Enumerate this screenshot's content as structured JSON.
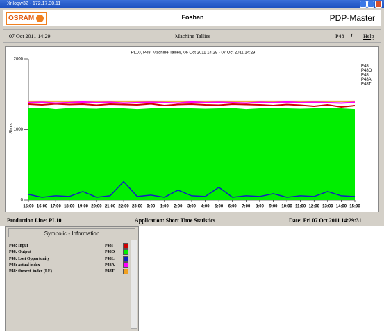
{
  "window": {
    "title": "Xnlogw32 - 172.17.30.11"
  },
  "header": {
    "logo": "OSRAM",
    "site": "Foshan",
    "app": "PDP-Master"
  },
  "toolbar": {
    "datetime": "07 Oct 2011 14:29",
    "view": "Machine Tallies",
    "machine": "P48",
    "info": "i",
    "help": "Help"
  },
  "chart_data": {
    "type": "line",
    "title": "PL10, P48, Machine Tallies, 06 Oct 2011 14:29 - 07 Oct 2011 14:29",
    "y_label": "Shots",
    "categories": [
      "15:00",
      "16:00",
      "17:00",
      "18:00",
      "19:00",
      "20:00",
      "21:00",
      "22:00",
      "23:00",
      "0:00",
      "1:00",
      "2:00",
      "3:00",
      "4:00",
      "5:00",
      "6:00",
      "7:00",
      "8:00",
      "9:00",
      "10:00",
      "11:00",
      "12:00",
      "13:00",
      "14:00",
      "15:00"
    ],
    "ylim": [
      0,
      2000
    ],
    "yticks": [
      0,
      1000,
      2000
    ],
    "series": [
      {
        "name": "P48I",
        "color": "#d00000",
        "values": [
          1360,
          1350,
          1365,
          1355,
          1360,
          1345,
          1360,
          1355,
          1350,
          1365,
          1340,
          1355,
          1360,
          1350,
          1345,
          1360,
          1355,
          1350,
          1340,
          1355,
          1345,
          1330,
          1350,
          1320,
          1340
        ]
      },
      {
        "name": "P48O",
        "color": "#00ee00",
        "values": [
          1300,
          1310,
          1290,
          1305,
          1300,
          1295,
          1310,
          1300,
          1290,
          1300,
          1305,
          1310,
          1300,
          1295,
          1300,
          1305,
          1290,
          1300,
          1310,
          1300,
          1295,
          1300,
          1305,
          1300,
          1290
        ]
      },
      {
        "name": "P48L",
        "color": "#1020c0",
        "values": [
          80,
          40,
          60,
          50,
          120,
          40,
          60,
          260,
          50,
          70,
          40,
          140,
          60,
          50,
          180,
          40,
          60,
          50,
          90,
          40,
          60,
          50,
          120,
          60,
          50
        ]
      },
      {
        "name": "P48A",
        "color": "#ff00ff",
        "values": [
          1380,
          1385,
          1375,
          1380,
          1390,
          1380,
          1385,
          1375,
          1380,
          1385,
          1380,
          1375,
          1390,
          1380,
          1385,
          1380,
          1375,
          1385,
          1380,
          1390,
          1380,
          1385,
          1380,
          1375,
          1385
        ]
      },
      {
        "name": "P48T",
        "color": "#f0a020",
        "values": [
          1400,
          1400,
          1400,
          1400,
          1400,
          1400,
          1400,
          1400,
          1400,
          1400,
          1400,
          1400,
          1400,
          1400,
          1400,
          1400,
          1400,
          1400,
          1400,
          1400,
          1400,
          1400,
          1400,
          1400,
          1400
        ]
      }
    ]
  },
  "status": {
    "line": "Production Line:  PL10",
    "application": "Application:  Short Time Statistics",
    "date": "Date:  Fri 07 Oct 2011 14:29:31"
  },
  "panel": {
    "title": "Symbolic - Information",
    "rows": [
      [
        "P48: Input",
        "P48I"
      ],
      [
        "P48: Output",
        "P48O"
      ],
      [
        "P48: Lost Opportunity",
        "P48L"
      ],
      [
        "P48: actual index",
        "P48A"
      ],
      [
        "P48: theoret. index (LE)",
        "P48T"
      ]
    ]
  }
}
